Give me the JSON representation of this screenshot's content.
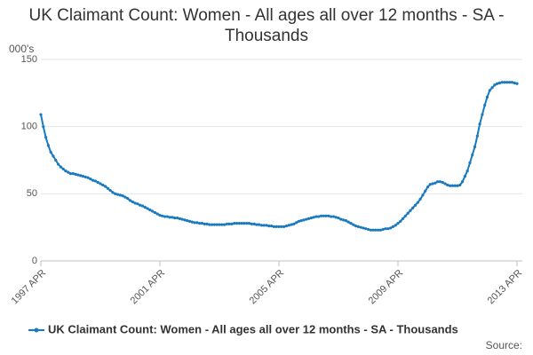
{
  "chart_data": {
    "type": "line",
    "title": "UK Claimant Count: Women - All ages all over 12 months - SA - Thousands",
    "y_label": "000's",
    "source": "Source:",
    "categories": [
      "1997 APR",
      null,
      null,
      null,
      null,
      null,
      null,
      null,
      null,
      null,
      null,
      null,
      null,
      null,
      null,
      null,
      null,
      null,
      null,
      null,
      null,
      null,
      null,
      null,
      null,
      null,
      null,
      null,
      null,
      null,
      null,
      null,
      null,
      null,
      null,
      null,
      null,
      null,
      null,
      null,
      null,
      null,
      null,
      null,
      null,
      null,
      null,
      null,
      "2001 APR",
      null,
      null,
      null,
      null,
      null,
      null,
      null,
      null,
      null,
      null,
      null,
      null,
      null,
      null,
      null,
      null,
      null,
      null,
      null,
      null,
      null,
      null,
      null,
      null,
      null,
      null,
      null,
      null,
      null,
      null,
      null,
      null,
      null,
      null,
      null,
      null,
      null,
      null,
      null,
      null,
      null,
      null,
      null,
      null,
      null,
      null,
      null,
      "2005 APR",
      null,
      null,
      null,
      null,
      null,
      null,
      null,
      null,
      null,
      null,
      null,
      null,
      null,
      null,
      null,
      null,
      null,
      null,
      null,
      null,
      null,
      null,
      null,
      null,
      null,
      null,
      null,
      null,
      null,
      null,
      null,
      null,
      null,
      null,
      null,
      null,
      null,
      null,
      null,
      null,
      null,
      null,
      null,
      null,
      null,
      null,
      null,
      "2009 APR",
      null,
      null,
      null,
      null,
      null,
      null,
      null,
      null,
      null,
      null,
      null,
      null,
      null,
      null,
      null,
      null,
      null,
      null,
      null,
      null,
      null,
      null,
      null,
      null,
      null,
      null,
      null,
      null,
      null,
      null,
      null,
      null,
      null,
      null,
      null,
      null,
      null,
      null,
      null,
      null,
      null,
      null,
      null,
      null,
      null,
      null,
      null,
      "2013 APR"
    ],
    "series": [
      {
        "name": "UK Claimant Count: Women - All ages all over 12 months - SA - Thousands",
        "color": "#1a7abf",
        "values": [
          109,
          100,
          92,
          86,
          81,
          78,
          75,
          72,
          70,
          68.5,
          67,
          66,
          65,
          65,
          64.5,
          64,
          63.5,
          63,
          62.5,
          62,
          61,
          60,
          59.5,
          58.5,
          57.5,
          56.5,
          55.5,
          54,
          52.5,
          51,
          50,
          49.5,
          49,
          48.5,
          47.5,
          46.5,
          45,
          44,
          43,
          42.5,
          41.5,
          41,
          40,
          39,
          38,
          37,
          36,
          35,
          34,
          33.5,
          33,
          33,
          32.5,
          32.5,
          32,
          32,
          31.5,
          31,
          30.5,
          30,
          29.5,
          29,
          28.5,
          28.5,
          28,
          28,
          27.5,
          27.5,
          27,
          27,
          27,
          27,
          27,
          27,
          27,
          27.5,
          27.5,
          27.5,
          28,
          28,
          28,
          28,
          28,
          28,
          28,
          27.5,
          27.5,
          27,
          27,
          26.5,
          26.5,
          26.5,
          26,
          26,
          25.5,
          25.5,
          25.5,
          25.5,
          25.5,
          26,
          26.5,
          27,
          27.5,
          28.5,
          29.5,
          30,
          30.5,
          31,
          31.5,
          32,
          32.5,
          33,
          33,
          33.5,
          33.5,
          33.5,
          33.5,
          33,
          33,
          32.5,
          32,
          31,
          30.5,
          30,
          29,
          28,
          27,
          26,
          25.5,
          25,
          24.5,
          24,
          23.5,
          23,
          23,
          23,
          23,
          23,
          23.5,
          24,
          24,
          24.5,
          25.5,
          26.5,
          28,
          29.5,
          31.5,
          33.5,
          35.5,
          37.5,
          39.5,
          41.5,
          43.5,
          46,
          49,
          52,
          55,
          57,
          57.5,
          58,
          59,
          59,
          58.5,
          57.5,
          56.5,
          56,
          56,
          56,
          56,
          56.5,
          59,
          63,
          67,
          73,
          79,
          85,
          93,
          102,
          109,
          116,
          122,
          127,
          129,
          131,
          132,
          132.5,
          133,
          133,
          133,
          133,
          133,
          132.5,
          132
        ]
      }
    ],
    "ylim": [
      0,
      150
    ],
    "yticks": [
      0,
      50,
      100,
      150
    ],
    "grid": true,
    "legend": "bottom"
  }
}
